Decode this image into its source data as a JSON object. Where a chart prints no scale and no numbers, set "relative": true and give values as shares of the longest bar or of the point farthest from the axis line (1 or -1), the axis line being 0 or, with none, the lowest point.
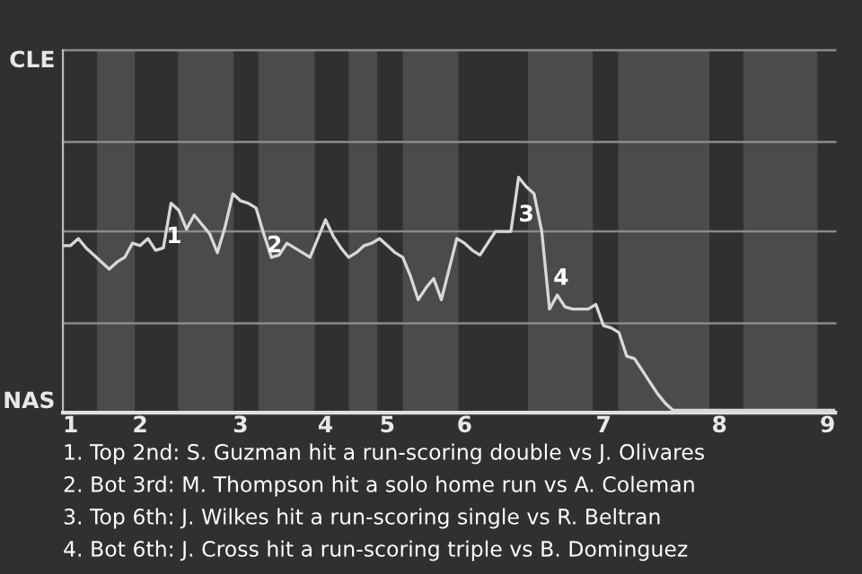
{
  "chart_data": {
    "type": "line",
    "relative": true,
    "categories": [
      null,
      "1",
      null,
      null,
      null,
      null,
      null,
      null,
      null,
      null,
      "2",
      null,
      null,
      null,
      null,
      null,
      null,
      null,
      null,
      null,
      null,
      null,
      null,
      "3",
      null,
      null,
      null,
      null,
      null,
      null,
      null,
      null,
      null,
      null,
      "4",
      null,
      null,
      null,
      null,
      null,
      null,
      null,
      "5",
      null,
      null,
      null,
      null,
      null,
      null,
      null,
      null,
      null,
      "6",
      null,
      null,
      null,
      null,
      null,
      null,
      null,
      null,
      null,
      null,
      null,
      null,
      null,
      null,
      null,
      null,
      null,
      "7",
      null,
      null,
      null,
      null,
      null,
      null,
      null,
      null,
      null,
      null,
      null,
      null,
      null,
      null,
      "8",
      null,
      null,
      null,
      null,
      null,
      null,
      null,
      null,
      null,
      null,
      null,
      null,
      null,
      "9",
      null
    ],
    "series": [
      {
        "color": "#d8d8d8",
        "values": [
          0.71,
          0.71,
          0.74,
          0.7,
          0.67,
          0.64,
          0.61,
          0.64,
          0.66,
          0.72,
          0.71,
          0.74,
          0.69,
          0.7,
          0.89,
          0.86,
          0.78,
          0.84,
          0.8,
          0.76,
          0.68,
          0.79,
          0.93,
          0.9,
          0.89,
          0.87,
          0.76,
          0.66,
          0.67,
          0.72,
          0.7,
          0.68,
          0.66,
          0.74,
          0.82,
          0.75,
          0.7,
          0.66,
          0.68,
          0.71,
          0.72,
          0.74,
          0.71,
          0.68,
          0.66,
          0.58,
          0.48,
          0.53,
          0.57,
          0.48,
          0.61,
          0.74,
          0.72,
          0.69,
          0.67,
          0.72,
          0.77,
          0.77,
          0.77,
          1.0,
          0.96,
          0.93,
          0.77,
          0.44,
          0.5,
          0.45,
          0.44,
          0.44,
          0.44,
          0.46,
          0.37,
          0.36,
          0.34,
          0.24,
          0.23,
          0.18,
          0.13,
          0.08,
          0.04,
          0.01,
          0.01,
          0.01,
          0.01,
          0.01,
          0.01,
          0.01,
          0.01,
          0.01,
          0.01,
          0.01,
          0.01,
          0.01,
          0.01,
          0.01,
          0.01,
          0.01,
          0.01,
          0.01,
          0.01,
          0.01,
          0.01
        ]
      }
    ],
    "ref_lines": [
      {
        "axis": "y",
        "value": 0.38,
        "color": "#8a8a8a"
      },
      {
        "axis": "y",
        "value": 0.77,
        "color": "#8a8a8a"
      },
      {
        "axis": "y",
        "value": 1.15,
        "color": "#8a8a8a"
      },
      {
        "axis": "y",
        "value": 1.54,
        "color": "#8a8a8a"
      }
    ],
    "annotations": [
      "CLE",
      "NAS",
      "1",
      "2",
      "3",
      "4",
      "1. Top 2nd: S. Guzman hit a run-scoring double vs J. Olivares",
      "2. Bot 3rd: M. Thompson hit a solo home run vs A. Coleman",
      "3. Top 6th: J. Wilkes hit a run-scoring single vs R. Beltran",
      "4. Bot 6th: J. Cross hit a run-scoring triple vs B. Dominguez"
    ]
  }
}
